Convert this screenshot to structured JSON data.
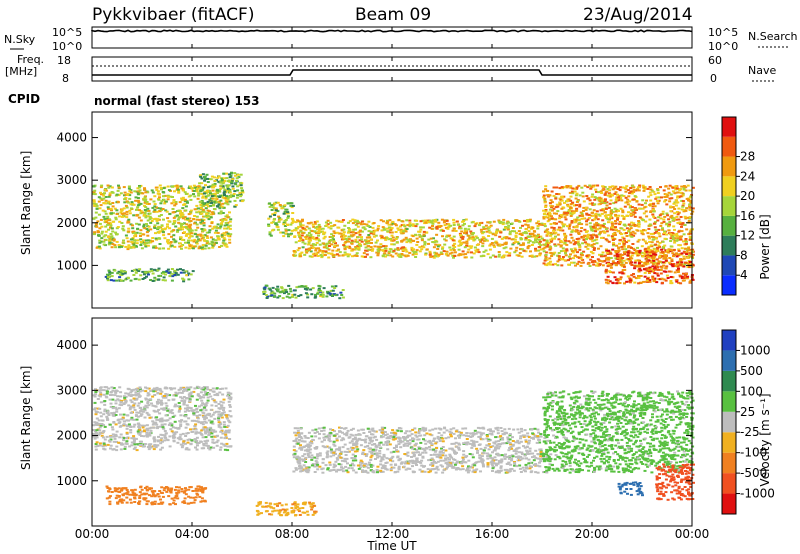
{
  "header": {
    "title": "Pykkvibaer (fitACF)",
    "beam": "Beam 09",
    "date": "23/Aug/2014"
  },
  "noise_panel": {
    "left_label": "N.Sky",
    "right_label": "N.Search",
    "left_ticks": [
      "10^5",
      "10^0"
    ],
    "right_ticks": [
      "10^5",
      "10^0"
    ]
  },
  "freq_panel": {
    "left_label_1": "Freq.",
    "left_label_2": "[MHz]",
    "left_ticks": [
      "18",
      "8"
    ],
    "right_label": "Nave",
    "right_ticks": [
      "60",
      "0"
    ],
    "cpid_label": "CPID",
    "cpid_text": "normal (fast stereo) 153"
  },
  "axes": {
    "x_ticks": [
      "00:00",
      "04:00",
      "08:00",
      "12:00",
      "16:00",
      "20:00",
      "00:00"
    ],
    "xlabel": "Time UT",
    "ylabel": "Slant Range [km]",
    "y_ticks": [
      "1000",
      "2000",
      "3000",
      "4000"
    ]
  },
  "power_colorbar": {
    "label": "Power [dB]",
    "ticks": [
      "4",
      "8",
      "12",
      "16",
      "20",
      "24",
      "28"
    ],
    "colors": [
      "#0a2dff",
      "#1f48b5",
      "#2e7d5a",
      "#57b03f",
      "#a6d53a",
      "#f0d020",
      "#f09a10",
      "#f05a10",
      "#e01010"
    ]
  },
  "velocity_colorbar": {
    "label": "Velocity [m s⁻¹]",
    "ticks": [
      "1000",
      "500",
      "100",
      "25",
      "-25",
      "-100",
      "-500",
      "-1000"
    ],
    "colors": [
      "#2040c0",
      "#2d6fb0",
      "#2f8a50",
      "#58c040",
      "#bdbdbd",
      "#f0b020",
      "#f08020",
      "#f05020",
      "#e01010"
    ]
  },
  "chart_data": [
    {
      "type": "heatmap",
      "name": "Power",
      "xlabel": "Time UT",
      "ylabel": "Slant Range [km]",
      "x_range": [
        "00:00",
        "24:00"
      ],
      "ylim": [
        0,
        4600
      ],
      "colorbar_label": "Power [dB]",
      "colorbar_range": [
        0,
        32
      ],
      "echo_regions": [
        {
          "t_start": 0.0,
          "t_end": 5.5,
          "range_start_km": 1400,
          "range_end_km": 2900,
          "power_db": 18
        },
        {
          "t_start": 0.5,
          "t_end": 4.0,
          "range_start_km": 650,
          "range_end_km": 950,
          "power_db": 12
        },
        {
          "t_start": 4.2,
          "t_end": 6.0,
          "range_start_km": 2400,
          "range_end_km": 3200,
          "power_db": 14
        },
        {
          "t_start": 7.0,
          "t_end": 8.0,
          "range_start_km": 1700,
          "range_end_km": 2500,
          "power_db": 16
        },
        {
          "t_start": 6.8,
          "t_end": 10.0,
          "range_start_km": 250,
          "range_end_km": 550,
          "power_db": 12
        },
        {
          "t_start": 8.0,
          "t_end": 18.0,
          "range_start_km": 1200,
          "range_end_km": 2100,
          "power_db": 20
        },
        {
          "t_start": 18.0,
          "t_end": 24.0,
          "range_start_km": 1000,
          "range_end_km": 2900,
          "power_db": 22
        },
        {
          "t_start": 20.5,
          "t_end": 24.0,
          "range_start_km": 600,
          "range_end_km": 1400,
          "power_db": 26
        }
      ]
    },
    {
      "type": "heatmap",
      "name": "Velocity",
      "xlabel": "Time UT",
      "ylabel": "Slant Range [km]",
      "x_range": [
        "00:00",
        "24:00"
      ],
      "ylim": [
        0,
        4600
      ],
      "colorbar_label": "Velocity [m s⁻¹]",
      "colorbar_range": [
        -1000,
        1000
      ],
      "echo_regions": [
        {
          "t_start": 0.0,
          "t_end": 5.5,
          "range_start_km": 1700,
          "range_end_km": 3100,
          "velocity": 0
        },
        {
          "t_start": 0.5,
          "t_end": 4.5,
          "range_start_km": 500,
          "range_end_km": 900,
          "velocity": -400
        },
        {
          "t_start": 6.5,
          "t_end": 9.0,
          "range_start_km": 250,
          "range_end_km": 550,
          "velocity": -80
        },
        {
          "t_start": 8.0,
          "t_end": 18.0,
          "range_start_km": 1200,
          "range_end_km": 2200,
          "velocity": 0
        },
        {
          "t_start": 18.0,
          "t_end": 24.0,
          "range_start_km": 1200,
          "range_end_km": 3000,
          "velocity": 50
        },
        {
          "t_start": 21.0,
          "t_end": 22.0,
          "range_start_km": 700,
          "range_end_km": 1000,
          "velocity": 800
        },
        {
          "t_start": 22.5,
          "t_end": 24.0,
          "range_start_km": 600,
          "range_end_km": 1400,
          "velocity": -600
        }
      ]
    }
  ]
}
